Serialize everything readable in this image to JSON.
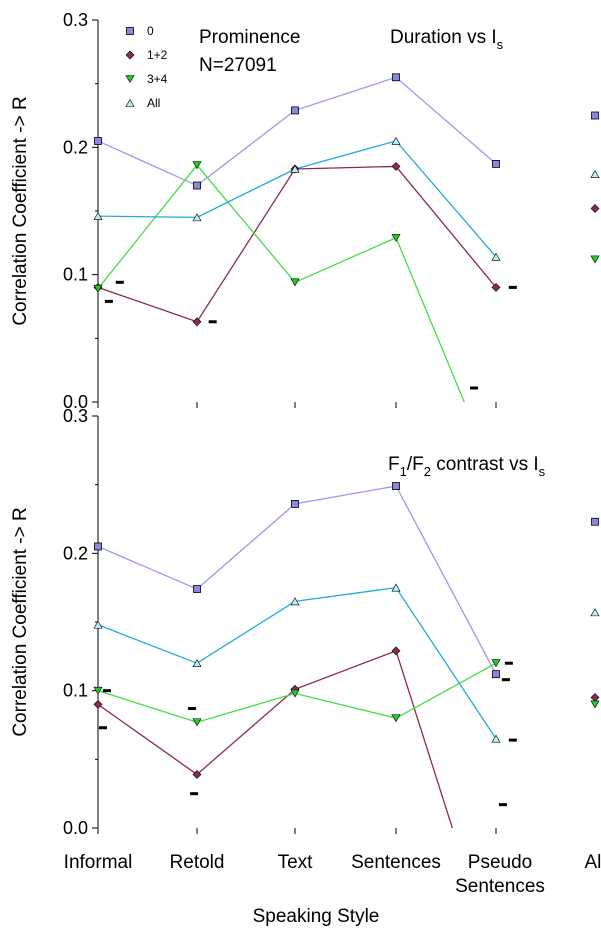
{
  "figure": {
    "xlabel": "Speaking Style",
    "categories": [
      "Informal",
      "Retold",
      "Text",
      "Sentences",
      [
        "Pseudo",
        "Sentences"
      ],
      "All"
    ],
    "ylabel": "Correlation Coefficient -> R"
  },
  "colors": {
    "s0_line": "#9999ee",
    "s0_marker": "#8888dd",
    "s12_line": "#8b2a52",
    "s12_marker": "#8b2a52",
    "s34_line": "#44dd44",
    "s34_marker": "#22cc22",
    "sall_line": "#22aadd",
    "sall_marker": "#bbeeee"
  },
  "legend": [
    {
      "label": "0",
      "key": "s0",
      "marker": "square"
    },
    {
      "label": "1+2",
      "key": "s12",
      "marker": "diamond"
    },
    {
      "label": "3+4",
      "key": "s34",
      "marker": "triangle-down"
    },
    {
      "label": "All",
      "key": "sall",
      "marker": "triangle-up"
    }
  ],
  "chart_data": [
    {
      "type": "line",
      "title": "Duration vs Is",
      "title_main": "Duration vs I",
      "title_sub": "s",
      "annotation": [
        "Prominence",
        "N=27091"
      ],
      "xlabel": "Speaking Style",
      "ylabel": "Correlation Coefficient -> R",
      "categories": [
        "Informal",
        "Retold",
        "Text",
        "Sentences",
        "Pseudo Sentences"
      ],
      "ylim": [
        0,
        0.3
      ],
      "yticks": [
        "0.0",
        "0.1",
        "0.2",
        "0.3"
      ],
      "series": [
        {
          "name": "0",
          "key": "s0",
          "values": [
            0.205,
            0.17,
            0.229,
            0.255,
            0.187
          ],
          "all": 0.225
        },
        {
          "name": "1+2",
          "key": "s12",
          "values": [
            0.09,
            0.063,
            0.183,
            0.185,
            0.09
          ],
          "all": 0.152
        },
        {
          "name": "3+4",
          "key": "s34",
          "values": [
            0.089,
            0.186,
            0.094,
            0.129,
            -0.06
          ],
          "all": 0.112
        },
        {
          "name": "All",
          "key": "sall",
          "values": [
            0.146,
            0.145,
            0.183,
            0.205,
            0.114
          ],
          "all": 0.179
        }
      ],
      "dashes": [
        {
          "x": 0.11,
          "y": 0.079
        },
        {
          "x": 0.22,
          "y": 0.094
        },
        {
          "x": 1.16,
          "y": 0.063
        },
        {
          "x": 4.17,
          "y": 0.09
        },
        {
          "x": 3.78,
          "y": 0.011
        }
      ]
    },
    {
      "type": "line",
      "title": "F1/F2 contrast vs Is",
      "title_parts": [
        "F",
        "1",
        "/F",
        "2",
        " contrast vs I",
        "s"
      ],
      "xlabel": "Speaking Style",
      "ylabel": "Correlation Coefficient -> R",
      "categories": [
        "Informal",
        "Retold",
        "Text",
        "Sentences",
        "Pseudo Sentences"
      ],
      "ylim": [
        0,
        0.3
      ],
      "yticks": [
        "0.0",
        "0.1",
        "0.2",
        "0.3"
      ],
      "series": [
        {
          "name": "0",
          "key": "s0",
          "values": [
            0.205,
            0.174,
            0.236,
            0.249,
            0.112
          ],
          "all": 0.223
        },
        {
          "name": "1+2",
          "key": "s12",
          "values": [
            0.09,
            0.039,
            0.101,
            0.129,
            -0.1
          ],
          "all": 0.095
        },
        {
          "name": "3+4",
          "key": "s34",
          "values": [
            0.1,
            0.077,
            0.098,
            0.08,
            0.12
          ],
          "all": 0.09
        },
        {
          "name": "All",
          "key": "sall",
          "values": [
            0.148,
            0.12,
            0.165,
            0.175,
            0.065
          ],
          "all": 0.157
        }
      ],
      "dashes": [
        {
          "x": 0.09,
          "y": 0.1
        },
        {
          "x": 0.05,
          "y": 0.073
        },
        {
          "x": 0.95,
          "y": 0.087
        },
        {
          "x": 0.97,
          "y": 0.025
        },
        {
          "x": 4.13,
          "y": 0.12
        },
        {
          "x": 4.1,
          "y": 0.108
        },
        {
          "x": 4.17,
          "y": 0.064
        },
        {
          "x": 4.07,
          "y": 0.017
        }
      ]
    }
  ]
}
